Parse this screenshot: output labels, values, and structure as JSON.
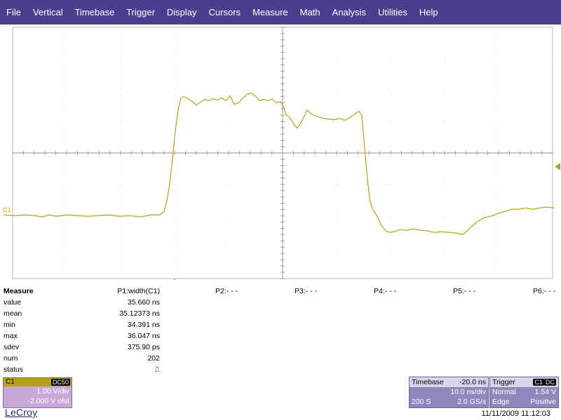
{
  "menu": [
    "File",
    "Vertical",
    "Timebase",
    "Trigger",
    "Display",
    "Cursors",
    "Measure",
    "Math",
    "Analysis",
    "Utilities",
    "Help"
  ],
  "scope": {
    "channel_marker": "C1",
    "trace_color": "#b5a01e",
    "grid_color": "#9a9a9a"
  },
  "measure": {
    "title": "Measure",
    "p1_header": "P1:width(C1)",
    "rows": [
      {
        "label": "value",
        "value": "35.660 ns"
      },
      {
        "label": "mean",
        "value": "35.12373 ns"
      },
      {
        "label": "min",
        "value": "34.391 ns"
      },
      {
        "label": "max",
        "value": "36.047 ns"
      },
      {
        "label": "sdev",
        "value": "375.90 ps"
      },
      {
        "label": "num",
        "value": "202"
      },
      {
        "label": "status",
        "value": "⎍"
      }
    ],
    "params": [
      "P2:- - -",
      "P3:- - -",
      "P4:- - -",
      "P5:- - -",
      "P6:- - -"
    ]
  },
  "channel": {
    "name": "C1",
    "coupling": "DC50",
    "vdiv": "1.00 V/div",
    "offset": "-2.000 V ofst"
  },
  "timebase": {
    "label": "Timebase",
    "delay": "-20.0 ns",
    "tdiv": "10.0 ns/div",
    "samples": "200 S",
    "rate": "2.0 GS/s"
  },
  "trigger": {
    "label": "Trigger",
    "tag1": "C1",
    "tag2": "DC",
    "mode": "Normal",
    "level": "1.54 V",
    "type": "Edge",
    "slope": "Positive"
  },
  "footer": {
    "logo": "LeCroy",
    "datetime": "11/11/2009 11:12:03"
  }
}
